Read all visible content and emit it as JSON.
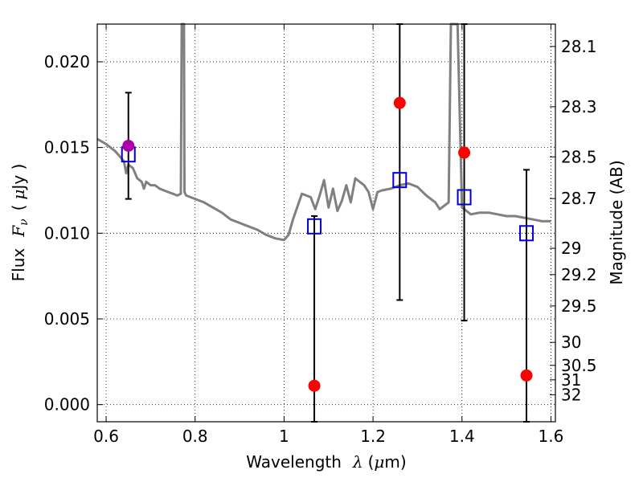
{
  "chart_data": {
    "type": "scatter",
    "xlabel": {
      "prefix": "Wavelength",
      "symbol": "λ",
      "unit_open": "(",
      "unit_mu": "μ",
      "unit_rest": "m)"
    },
    "ylabel": {
      "prefix": "Flux",
      "symbol": "F",
      "subscript": "ν",
      "unit_open": "(",
      "unit_mu": "μ",
      "unit_rest": "Jy )"
    },
    "y2label": "Magnitude (AB)",
    "xlim": [
      0.58,
      1.61
    ],
    "ylim": [
      -0.001,
      0.0222
    ],
    "xticks": [
      {
        "value": 0.6,
        "label": "0.6"
      },
      {
        "value": 0.8,
        "label": "0.8"
      },
      {
        "value": 1.0,
        "label": "1"
      },
      {
        "value": 1.2,
        "label": "1.2"
      },
      {
        "value": 1.4,
        "label": "1.4"
      },
      {
        "value": 1.6,
        "label": "1.6"
      }
    ],
    "yticks": [
      {
        "value": 0.0,
        "label": "0.000"
      },
      {
        "value": 0.005,
        "label": "0.005"
      },
      {
        "value": 0.01,
        "label": "0.010"
      },
      {
        "value": 0.015,
        "label": "0.015"
      },
      {
        "value": 0.02,
        "label": "0.020"
      }
    ],
    "y2ticks": [
      {
        "value": 28.1,
        "label": "28.1"
      },
      {
        "value": 28.3,
        "label": "28.3"
      },
      {
        "value": 28.5,
        "label": "28.5"
      },
      {
        "value": 28.7,
        "label": "28.7"
      },
      {
        "value": 29.0,
        "label": "29"
      },
      {
        "value": 29.2,
        "label": "29.2"
      },
      {
        "value": 29.5,
        "label": "29.5"
      },
      {
        "value": 30.0,
        "label": "30"
      },
      {
        "value": 30.5,
        "label": "30.5"
      },
      {
        "value": 31.0,
        "label": "31"
      },
      {
        "value": 32.0,
        "label": "32"
      }
    ],
    "grid": true,
    "colors": {
      "template": "#808080",
      "observed": "#ff0000",
      "model_box": "#0000cc",
      "purple_point": "#aa00aa",
      "errorbar": "#000000",
      "grid": "#000000"
    },
    "template_spectrum": {
      "x": [
        0.58,
        0.6,
        0.62,
        0.63,
        0.64,
        0.645,
        0.65,
        0.66,
        0.67,
        0.68,
        0.685,
        0.69,
        0.7,
        0.71,
        0.72,
        0.73,
        0.74,
        0.75,
        0.76,
        0.768,
        0.77,
        0.771,
        0.773,
        0.775,
        0.776,
        0.78,
        0.8,
        0.82,
        0.84,
        0.86,
        0.88,
        0.9,
        0.92,
        0.94,
        0.96,
        0.98,
        1.0,
        1.01,
        1.02,
        1.04,
        1.06,
        1.07,
        1.08,
        1.09,
        1.1,
        1.11,
        1.12,
        1.13,
        1.14,
        1.15,
        1.16,
        1.18,
        1.19,
        1.2,
        1.21,
        1.22,
        1.24,
        1.26,
        1.28,
        1.3,
        1.32,
        1.34,
        1.35,
        1.37,
        1.375,
        1.38,
        1.39,
        1.4,
        1.42,
        1.44,
        1.46,
        1.48,
        1.5,
        1.52,
        1.54,
        1.56,
        1.58,
        1.6
      ],
      "y": [
        0.0155,
        0.0152,
        0.0148,
        0.0145,
        0.0142,
        0.0135,
        0.014,
        0.0138,
        0.0132,
        0.013,
        0.0126,
        0.013,
        0.0128,
        0.0128,
        0.0126,
        0.0125,
        0.0124,
        0.0123,
        0.0122,
        0.0123,
        0.0222,
        0.0222,
        0.0222,
        0.0222,
        0.0124,
        0.0122,
        0.012,
        0.0118,
        0.0115,
        0.0112,
        0.0108,
        0.0106,
        0.0104,
        0.0102,
        0.0099,
        0.0097,
        0.0096,
        0.0099,
        0.0108,
        0.0123,
        0.0121,
        0.0114,
        0.0122,
        0.0131,
        0.0115,
        0.0126,
        0.0113,
        0.0119,
        0.0128,
        0.0118,
        0.0132,
        0.0128,
        0.0124,
        0.0114,
        0.0124,
        0.0125,
        0.0126,
        0.0128,
        0.0129,
        0.0127,
        0.0122,
        0.0118,
        0.0114,
        0.0118,
        0.0222,
        0.0222,
        0.0222,
        0.0115,
        0.0111,
        0.0112,
        0.0112,
        0.0111,
        0.011,
        0.011,
        0.0109,
        0.0108,
        0.0107,
        0.0107
      ]
    },
    "observed_points": [
      {
        "x": 0.65,
        "y": 0.0151,
        "yerr_low": 0.012,
        "yerr_high": 0.0182
      },
      {
        "x": 1.068,
        "y": 0.0011,
        "yerr_low": -0.001,
        "yerr_high": 0.011
      },
      {
        "x": 1.26,
        "y": 0.0176,
        "yerr_low": 0.0061,
        "yerr_high": 0.0222
      },
      {
        "x": 1.405,
        "y": 0.0147,
        "yerr_low": 0.0049,
        "yerr_high": 0.0222
      },
      {
        "x": 1.545,
        "y": 0.0017,
        "yerr_low": -0.001,
        "yerr_high": 0.0137
      }
    ],
    "model_points": [
      {
        "x": 0.65,
        "y": 0.0146
      },
      {
        "x": 1.068,
        "y": 0.0104
      },
      {
        "x": 1.26,
        "y": 0.0131
      },
      {
        "x": 1.405,
        "y": 0.0121
      },
      {
        "x": 1.545,
        "y": 0.01
      }
    ]
  }
}
